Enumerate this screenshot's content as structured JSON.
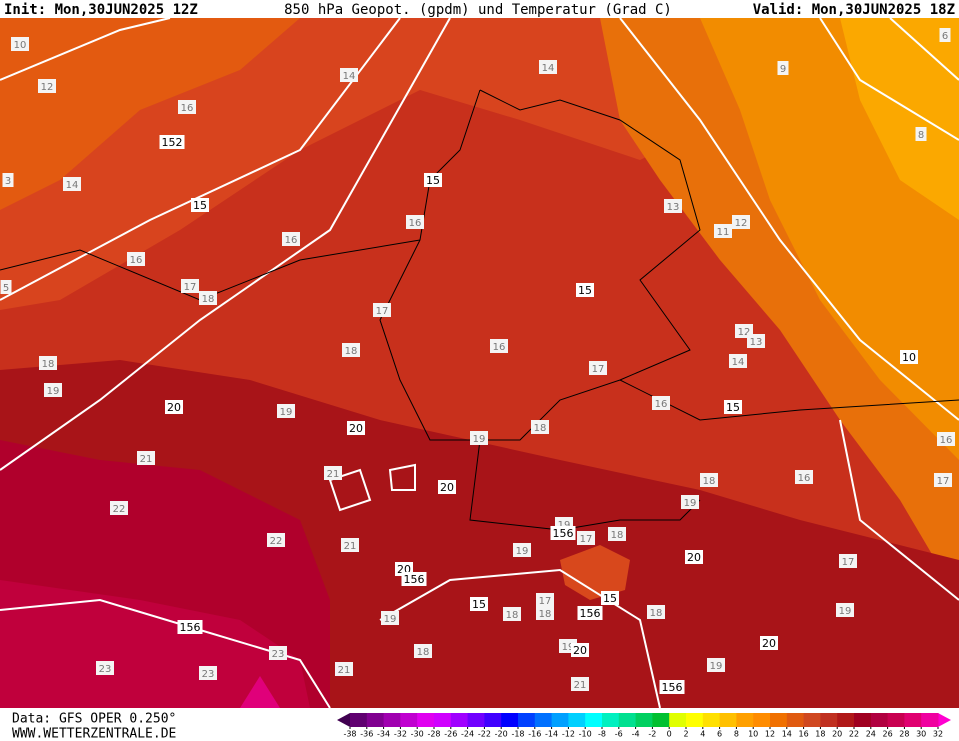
{
  "header": {
    "init": "Init: Mon,30JUN2025 12Z",
    "title": "850 hPa Geopot. (gpdm) und Temperatur (Grad C)",
    "valid": "Valid: Mon,30JUN2025 18Z"
  },
  "footer": {
    "source": "Data: GFS OPER 0.250°",
    "site": "WWW.WETTERZENTRALE.DE"
  },
  "geopotential_labels": [
    152,
    15,
    15,
    15,
    10,
    15,
    20,
    20,
    20,
    156,
    20,
    156,
    15,
    156,
    15,
    20,
    156,
    156,
    20,
    20
  ],
  "temperature_labels": [
    10,
    12,
    14,
    14,
    9,
    6,
    8,
    16,
    14,
    3,
    16,
    16,
    13,
    12,
    11,
    16,
    17,
    18,
    17,
    16,
    18,
    17,
    12,
    13,
    14,
    18,
    19,
    19,
    16,
    19,
    18,
    16,
    17,
    21,
    21,
    18,
    16,
    22,
    19,
    22,
    21,
    19,
    17,
    18,
    19,
    17,
    19,
    18,
    17,
    18,
    18,
    19,
    19,
    23,
    23,
    23,
    21,
    18,
    21,
    19,
    5
  ],
  "legend": {
    "ticks": [
      -38,
      -36,
      -34,
      -32,
      -30,
      -28,
      -26,
      -24,
      -22,
      -20,
      -18,
      -16,
      -14,
      -12,
      -10,
      -8,
      -6,
      -4,
      -2,
      0,
      2,
      4,
      6,
      8,
      10,
      12,
      14,
      16,
      18,
      20,
      22,
      24,
      26,
      28,
      30,
      32
    ],
    "colors": [
      "#600070",
      "#800090",
      "#a000b0",
      "#c000d0",
      "#e000f0",
      "#d000ff",
      "#a000ff",
      "#7000ff",
      "#4000ff",
      "#0000ff",
      "#0040ff",
      "#0070ff",
      "#00a0ff",
      "#00d0ff",
      "#00ffff",
      "#00f0c0",
      "#00e090",
      "#00d060",
      "#00c030",
      "#e0ff00",
      "#ffff00",
      "#ffe000",
      "#ffc000",
      "#ffa000",
      "#ff8c00",
      "#f07000",
      "#e05a10",
      "#d04820",
      "#c03020",
      "#b01818",
      "#a00020",
      "#b00040",
      "#c80050",
      "#e00070",
      "#f000a0"
    ],
    "low_color": "#400050",
    "high_color": "#ff00d0"
  }
}
